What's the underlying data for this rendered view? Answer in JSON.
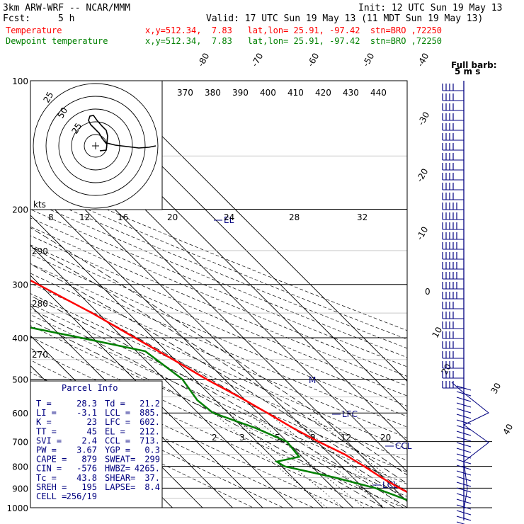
{
  "header": {
    "model": "3km ARW-WRF -- NCAR/MMM",
    "init": "Init: 12 UTC Sun 19 May 13",
    "fcst_label": "Fcst:",
    "fcst_value": "5 h",
    "valid": "Valid: 17 UTC Sun 19 May 13 (11 MDT Sun 19 May 13)",
    "temp_label": "Temperature",
    "temp_info": "x,y=512.34,  7.83   lat,lon= 25.91, -97.42  stn=BRO ,72250",
    "dew_label": "Dewpoint temperature",
    "dew_info": "x,y=512.34,  7.83   lat,lon= 25.91, -97.42  stn=BRO ,72250",
    "temp_color": "#ff0000",
    "dew_color": "#008000"
  },
  "barb_legend": {
    "title": "Full barb:",
    "value": "5 m s"
  },
  "hodograph": {
    "units": "kts",
    "ring_labels": [
      "25",
      "50"
    ],
    "speed_ticks": [
      "8",
      "12",
      "16",
      "20",
      "24",
      "28",
      "32"
    ]
  },
  "parcel_info": {
    "title": "Parcel Info",
    "rows": [
      [
        "T    =",
        "28.3",
        "Td  =",
        "21.2"
      ],
      [
        "LI   =",
        "-3.1",
        "LCL =",
        "885."
      ],
      [
        "K    =",
        "23",
        "LFC =",
        "602."
      ],
      [
        "TT   =",
        "45",
        "EL  =",
        "212."
      ],
      [
        "SVI  =",
        "2.4",
        "CCL =",
        "713."
      ],
      [
        "PW   =",
        "3.67",
        "YGP =",
        "0.3"
      ],
      [
        "CAPE =",
        "879",
        "SWEAT=",
        "299"
      ],
      [
        "CIN  =",
        "-576",
        "HWBZ=",
        "4265."
      ],
      [
        "Tc   =",
        "43.8",
        "SHEAR=",
        "37."
      ],
      [
        "SREH =",
        "195",
        "LAPSE=",
        "8.4"
      ],
      [
        "CELL =",
        "256/19",
        "",
        ""
      ]
    ]
  },
  "level_labels": {
    "lcl": "LCL",
    "lfc": "LFC",
    "ccl": "CCL",
    "el": "EL"
  },
  "chart_data": {
    "type": "line",
    "title": "",
    "xlabel": "",
    "ylabel": "",
    "pressure_levels": [
      1000,
      900,
      800,
      700,
      600,
      500,
      400,
      300,
      200,
      100
    ],
    "isotherm_labels": [
      "-80",
      "-70",
      "-60",
      "-50",
      "-40",
      "-30",
      "-20",
      "-10",
      "0",
      "10",
      "20",
      "30",
      "40"
    ],
    "theta_labels": [
      "370",
      "380",
      "390",
      "400",
      "410",
      "420",
      "430",
      "440"
    ],
    "theta_left_labels": [
      "290",
      "280",
      "270"
    ],
    "mixing_ratio_labels": [
      "2",
      "3",
      "5",
      "8",
      "12",
      "20"
    ],
    "series": [
      {
        "key": "temperature",
        "color": "#ff0000",
        "points": [
          {
            "p": 1000,
            "t": 28.5
          },
          {
            "p": 970,
            "t": 25.0
          },
          {
            "p": 940,
            "t": 24.5
          },
          {
            "p": 900,
            "t": 22.0
          },
          {
            "p": 850,
            "t": 19.5
          },
          {
            "p": 800,
            "t": 17.5
          },
          {
            "p": 750,
            "t": 15.0
          },
          {
            "p": 700,
            "t": 10.5
          },
          {
            "p": 650,
            "t": 6.5
          },
          {
            "p": 600,
            "t": 3.0
          },
          {
            "p": 550,
            "t": -1.0
          },
          {
            "p": 500,
            "t": -6.0
          },
          {
            "p": 450,
            "t": -10.5
          },
          {
            "p": 400,
            "t": -16.0
          },
          {
            "p": 350,
            "t": -22.0
          },
          {
            "p": 300,
            "t": -30.5
          },
          {
            "p": 250,
            "t": -40.0
          },
          {
            "p": 200,
            "t": -52.0
          },
          {
            "p": 175,
            "t": -59.0
          },
          {
            "p": 150,
            "t": -65.0
          },
          {
            "p": 125,
            "t": -67.0
          },
          {
            "p": 100,
            "t": -72.0
          }
        ]
      },
      {
        "key": "dewpoint",
        "color": "#008000",
        "points": [
          {
            "p": 1000,
            "t": 21.0
          },
          {
            "p": 970,
            "t": 21.5
          },
          {
            "p": 940,
            "t": 18.5
          },
          {
            "p": 900,
            "t": 14.0
          },
          {
            "p": 850,
            "t": 4.0
          },
          {
            "p": 800,
            "t": -9.0
          },
          {
            "p": 780,
            "t": -10.0
          },
          {
            "p": 760,
            "t": -1.0
          },
          {
            "p": 700,
            "t": 0.0
          },
          {
            "p": 650,
            "t": -6.0
          },
          {
            "p": 600,
            "t": -15.0
          },
          {
            "p": 560,
            "t": -16.0
          },
          {
            "p": 500,
            "t": -14.0
          },
          {
            "p": 430,
            "t": -17.0
          },
          {
            "p": 400,
            "t": -34.0
          },
          {
            "p": 370,
            "t": -53.0
          },
          {
            "p": 330,
            "t": -59.0
          },
          {
            "p": 300,
            "t": -59.0
          },
          {
            "p": 270,
            "t": -55.0
          },
          {
            "p": 240,
            "t": -59.0
          },
          {
            "p": 210,
            "t": -64.0
          },
          {
            "p": 180,
            "t": -65.0
          },
          {
            "p": 150,
            "t": -70.0
          },
          {
            "p": 125,
            "t": -75.0
          },
          {
            "p": 100,
            "t": -85.0
          }
        ]
      }
    ],
    "hodograph_trace": true,
    "grid": true
  }
}
